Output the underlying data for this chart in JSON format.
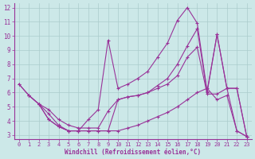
{
  "bg_color": "#cce8e8",
  "line_color": "#993399",
  "grid_color": "#aacccc",
  "xlabel": "Windchill (Refroidissement éolien,°C)",
  "xlim": [
    -0.5,
    23.5
  ],
  "ylim": [
    2.7,
    12.3
  ],
  "yticks": [
    3,
    4,
    5,
    6,
    7,
    8,
    9,
    10,
    11,
    12
  ],
  "xticks": [
    0,
    1,
    2,
    3,
    4,
    5,
    6,
    7,
    8,
    9,
    10,
    11,
    12,
    13,
    14,
    15,
    16,
    17,
    18,
    19,
    20,
    21,
    22,
    23
  ],
  "lines": [
    {
      "x": [
        0,
        1,
        2,
        3,
        4,
        5,
        6,
        7,
        8,
        9,
        10,
        11,
        12,
        13,
        14,
        15,
        16,
        17,
        18,
        19,
        20,
        21,
        22,
        23
      ],
      "y": [
        6.6,
        5.8,
        5.2,
        4.1,
        3.6,
        3.3,
        3.3,
        4.1,
        4.8,
        9.7,
        6.3,
        6.6,
        7.0,
        7.5,
        8.5,
        9.5,
        11.1,
        12.0,
        10.9,
        6.1,
        10.1,
        6.3,
        3.3,
        2.9
      ]
    },
    {
      "x": [
        0,
        1,
        2,
        3,
        4,
        5,
        6,
        7,
        8,
        9,
        10,
        11,
        12,
        13,
        14,
        15,
        16,
        17,
        18,
        19,
        20,
        21,
        22,
        23
      ],
      "y": [
        6.6,
        5.8,
        5.2,
        4.8,
        4.1,
        3.7,
        3.5,
        3.5,
        3.5,
        4.7,
        5.5,
        5.7,
        5.8,
        6.0,
        6.5,
        7.0,
        8.0,
        9.3,
        10.5,
        6.0,
        10.1,
        6.3,
        6.3,
        2.9
      ]
    },
    {
      "x": [
        1,
        2,
        3,
        4,
        5,
        6,
        7,
        8,
        9,
        10,
        11,
        12,
        13,
        14,
        15,
        16,
        17,
        18,
        19,
        20,
        21,
        22,
        23
      ],
      "y": [
        5.8,
        5.2,
        4.5,
        3.7,
        3.3,
        3.3,
        3.3,
        3.3,
        3.3,
        5.5,
        5.7,
        5.8,
        6.0,
        6.3,
        6.6,
        7.2,
        8.5,
        9.2,
        5.9,
        5.9,
        6.3,
        6.3,
        2.9
      ]
    },
    {
      "x": [
        2,
        3,
        4,
        5,
        6,
        7,
        8,
        9,
        10,
        11,
        12,
        13,
        14,
        15,
        16,
        17,
        18,
        19,
        20,
        21,
        22,
        23
      ],
      "y": [
        5.2,
        4.1,
        3.6,
        3.3,
        3.3,
        3.3,
        3.3,
        3.3,
        3.3,
        3.5,
        3.7,
        4.0,
        4.3,
        4.6,
        5.0,
        5.5,
        6.0,
        6.3,
        5.5,
        5.8,
        3.3,
        2.9
      ]
    }
  ]
}
